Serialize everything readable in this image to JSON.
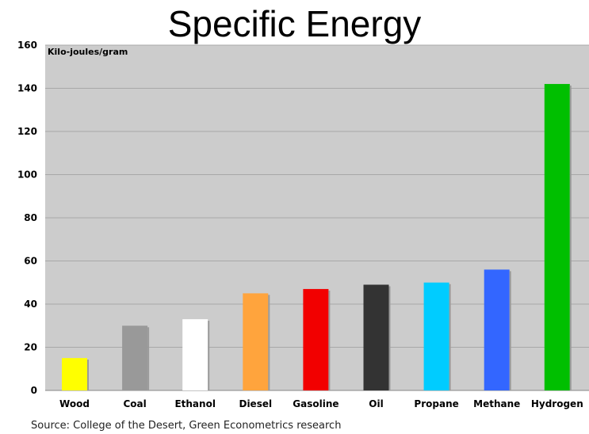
{
  "chart_data": {
    "type": "bar",
    "title": "Specific Energy",
    "ylabel": "Kilo-joules/gram",
    "xlabel": "",
    "ylim": [
      0,
      160
    ],
    "yticks": [
      0,
      20,
      40,
      60,
      80,
      100,
      120,
      140,
      160
    ],
    "grid": true,
    "categories": [
      "Wood",
      "Coal",
      "Ethanol",
      "Diesel",
      "Gasoline",
      "Oil",
      "Propane",
      "Methane",
      "Hydrogen"
    ],
    "values": [
      15,
      30,
      33,
      45,
      47,
      49,
      50,
      56,
      142
    ],
    "colors": [
      "#ffff00",
      "#999999",
      "#ffffff",
      "#ffa43d",
      "#f20000",
      "#333333",
      "#00ccff",
      "#3366ff",
      "#00bf00"
    ],
    "source": "Source: College of the Desert, Green Econometrics research"
  }
}
